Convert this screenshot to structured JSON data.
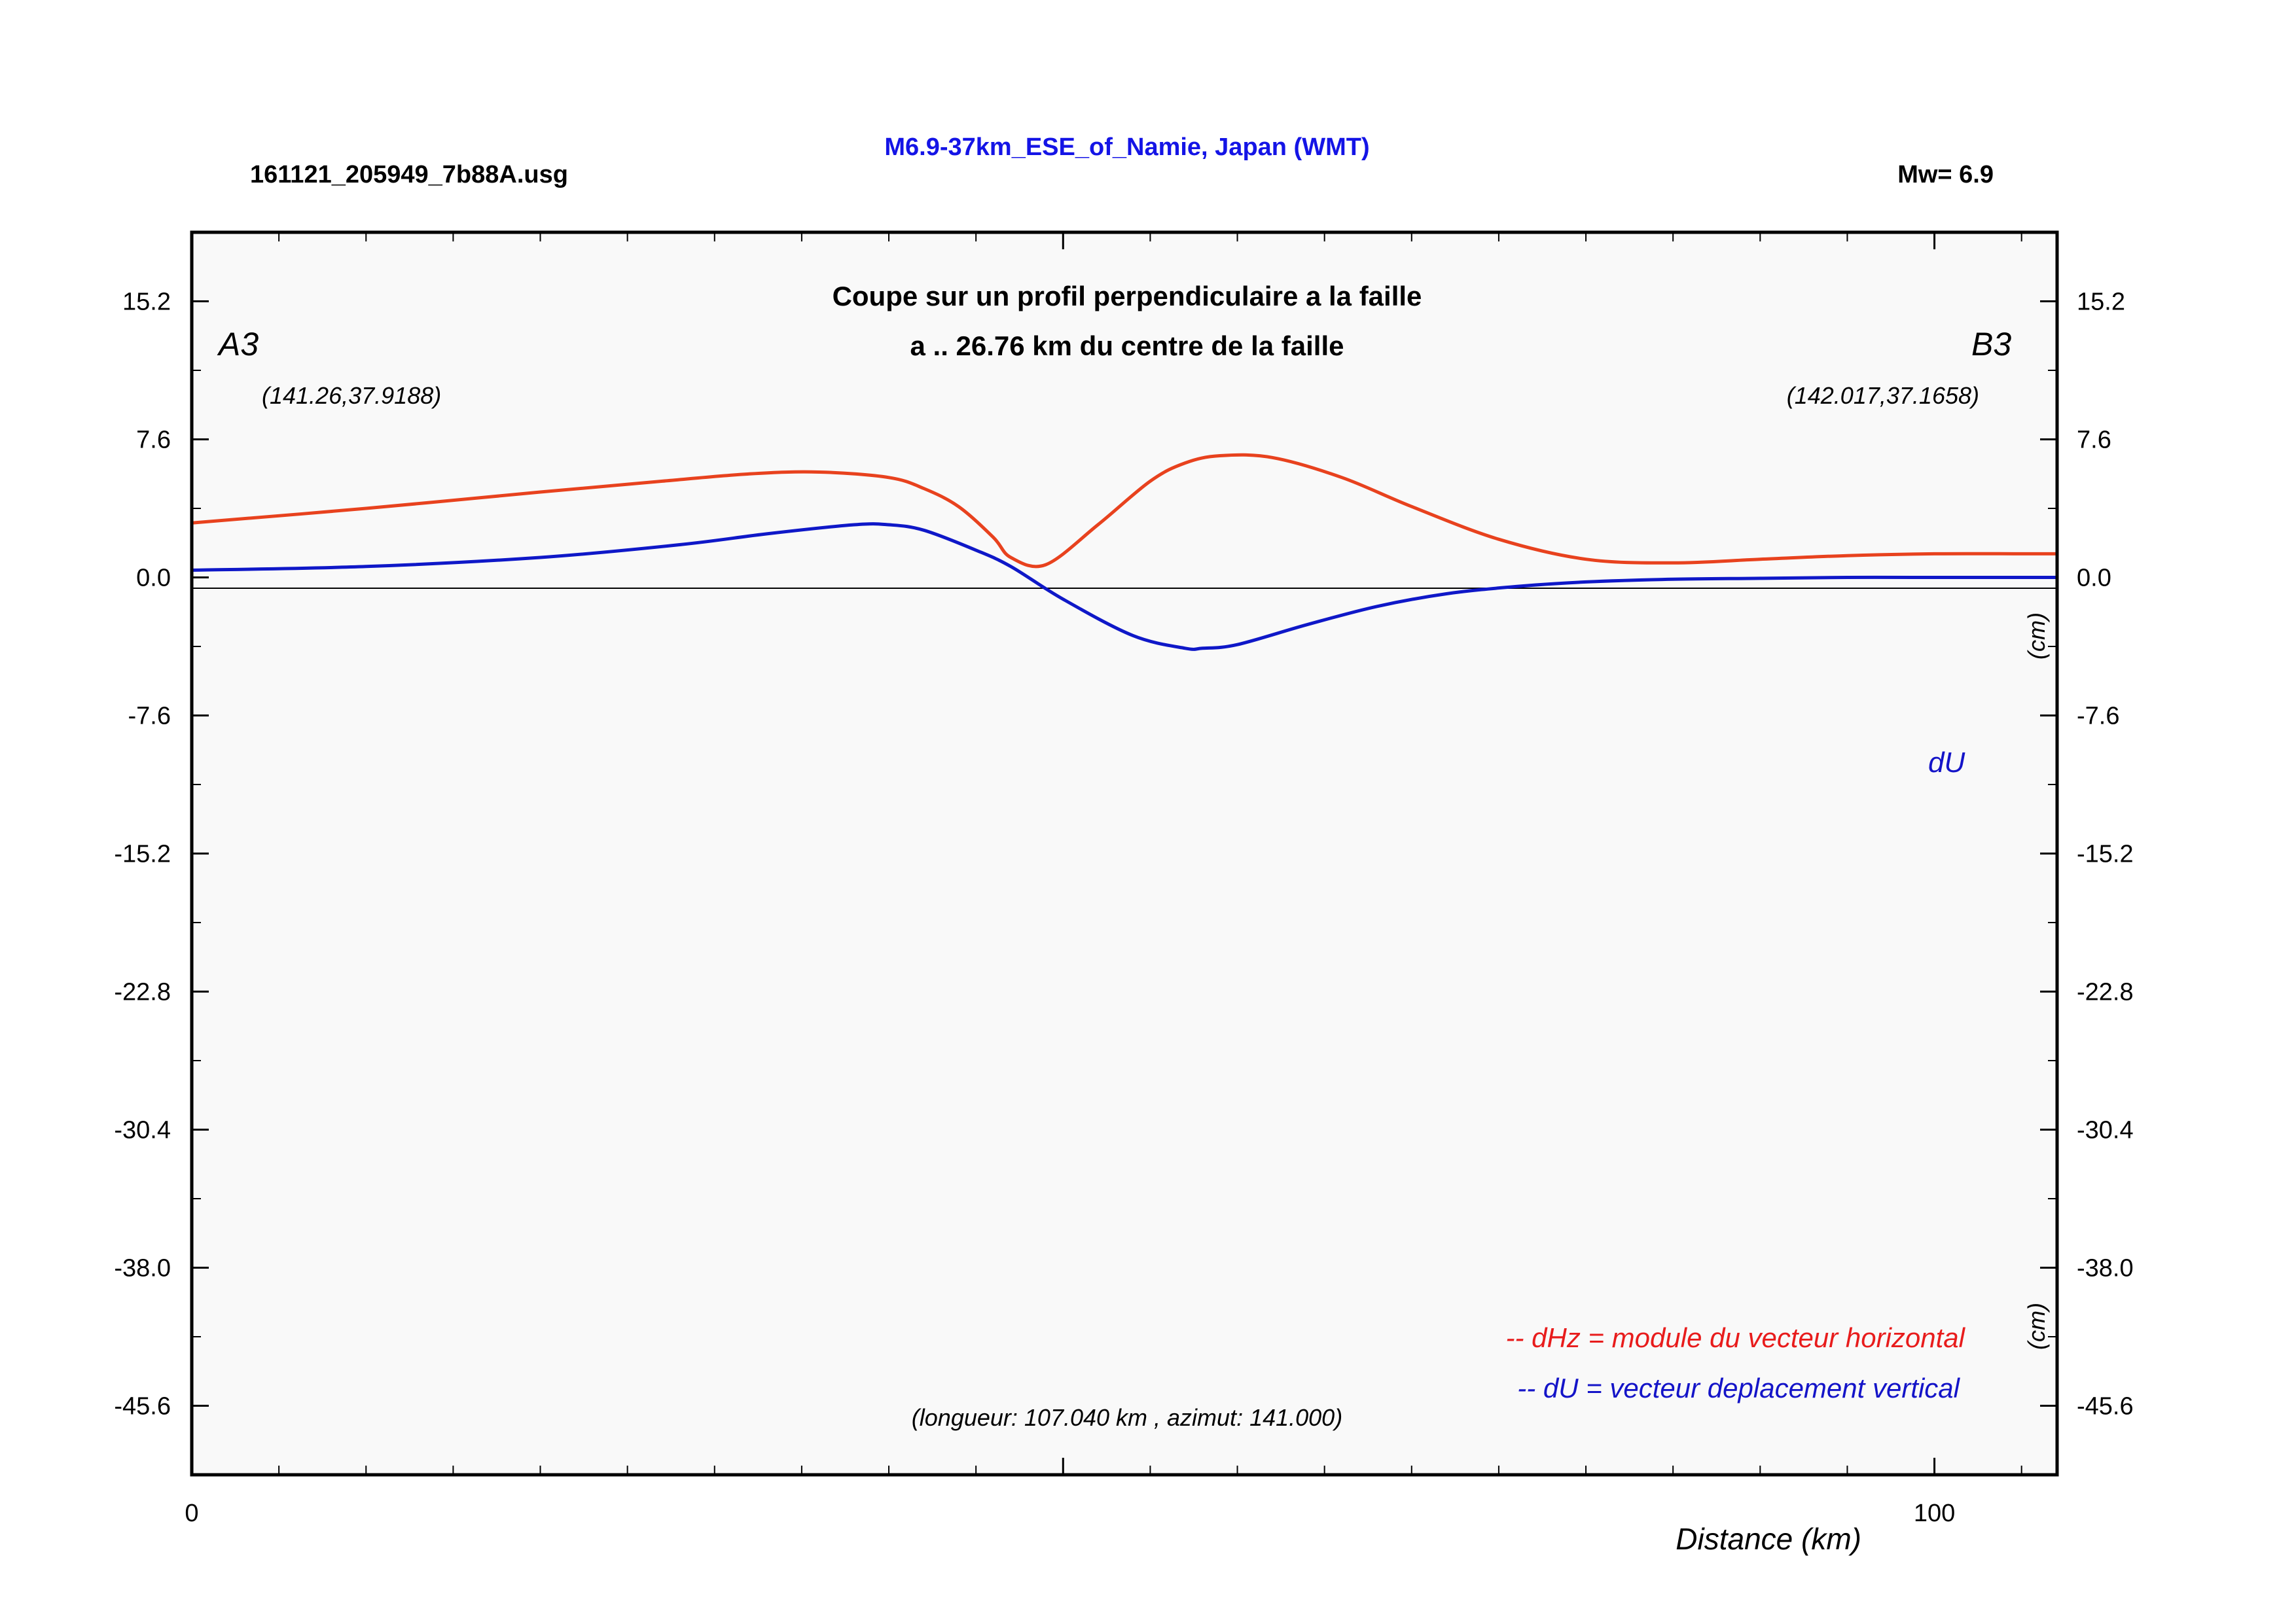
{
  "header": {
    "file": "161121_205949_7b88A.usg",
    "title": "M6.9-37km_ESE_of_Namie, Japan (WMT)",
    "magnitude": "Mw= 6.9"
  },
  "plot": {
    "subtitle_line1": "Coupe sur un profil perpendiculaire a la faille",
    "subtitle_line2": "a .. 26.76 km du centre de la faille",
    "point_a": {
      "label": "A3",
      "coords": "(141.26,37.9188)"
    },
    "point_b": {
      "label": "B3",
      "coords": "(142.017,37.1658)"
    },
    "unit_top": "(cm)",
    "unit_bottom": "(cm)",
    "du_label": "dU",
    "legend_dhz": "-- dHz = module du vecteur horizontal",
    "legend_du": "-- dU =  vecteur deplacement vertical",
    "info": "(longueur: 107.040 km , azimut: 141.000)"
  },
  "chart_data": {
    "type": "line",
    "xlabel": "Distance (km)",
    "ylabel": "",
    "xlim": [
      0,
      107.04
    ],
    "ylim": [
      -49.4,
      19.0
    ],
    "x_ticks": [
      0,
      100
    ],
    "y_ticks": [
      15.2,
      7.6,
      0.0,
      -7.6,
      -15.2,
      -22.8,
      -30.4,
      -38.0,
      -45.6
    ],
    "y_tick_labels": [
      "15.2",
      "7.6",
      "0.0",
      "-7.6",
      "-15.2",
      "-22.8",
      "-30.4",
      "-38.0",
      "-45.6"
    ],
    "zero_line": true,
    "colors": {
      "dHz": "#e8421e",
      "dU": "#0f18c8",
      "legend_dHz": "#e81c1c"
    },
    "series": [
      {
        "name": "dHz",
        "x": [
          0,
          10,
          20,
          27,
          32,
          36,
          40,
          42,
          44,
          46,
          47,
          49,
          52,
          55,
          57,
          59,
          62,
          66,
          70,
          75,
          80,
          85,
          90,
          95,
          100,
          105,
          107.04
        ],
        "y": [
          3.0,
          3.8,
          4.7,
          5.3,
          5.7,
          5.8,
          5.5,
          4.9,
          3.9,
          2.2,
          1.1,
          0.7,
          2.9,
          5.3,
          6.3,
          6.7,
          6.6,
          5.5,
          3.9,
          2.1,
          1.0,
          0.8,
          1.0,
          1.2,
          1.3,
          1.3,
          1.3
        ]
      },
      {
        "name": "dU",
        "x": [
          0,
          10,
          20,
          28,
          33,
          38,
          40,
          42,
          45,
          47,
          50,
          54,
          57,
          58,
          60,
          64,
          68,
          72,
          76,
          80,
          85,
          90,
          95,
          100,
          107.04
        ],
        "y": [
          0.4,
          0.6,
          1.1,
          1.8,
          2.4,
          2.9,
          2.9,
          2.6,
          1.5,
          0.6,
          -1.2,
          -3.2,
          -3.9,
          -3.9,
          -3.7,
          -2.6,
          -1.6,
          -0.9,
          -0.5,
          -0.25,
          -0.1,
          -0.05,
          0.0,
          0.0,
          0.0
        ]
      }
    ]
  }
}
